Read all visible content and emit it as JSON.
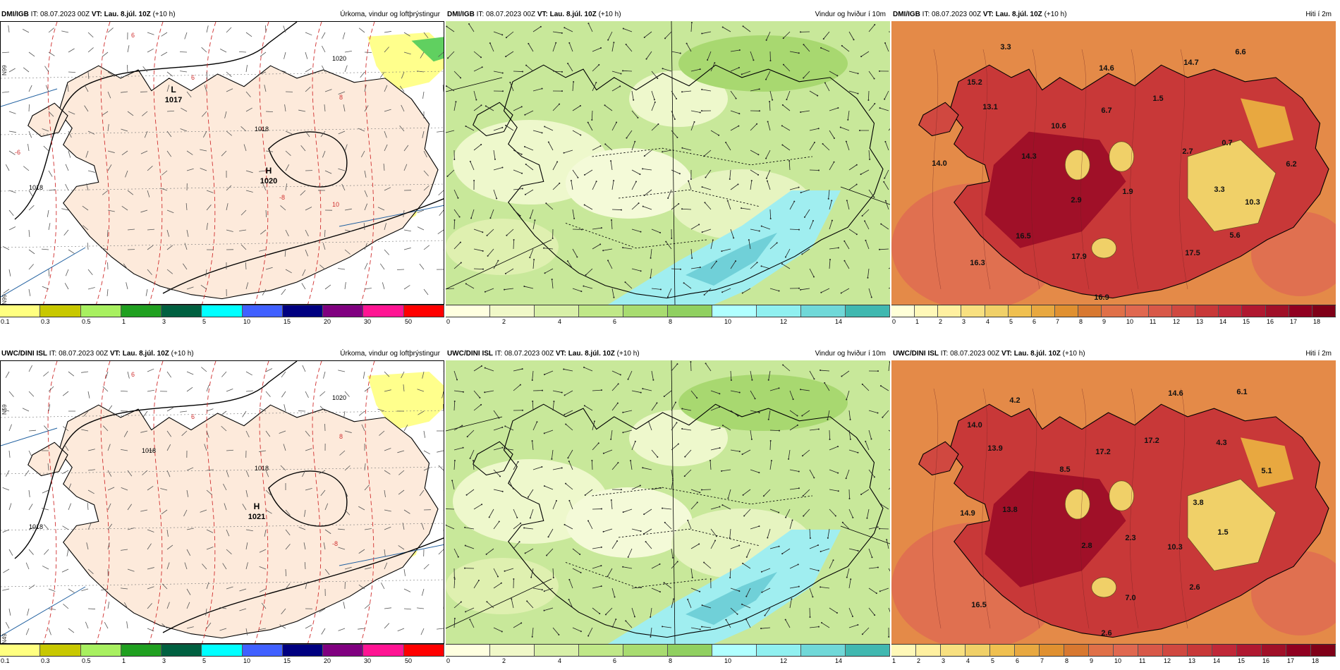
{
  "panels": [
    {
      "model": "DMI/IGB",
      "it_label": "IT:",
      "it_value": "08.07.2023 00Z",
      "vt_label": "VT:",
      "vt_value": "Lau. 8.júl. 10Z",
      "lead": "(+10 h)",
      "title": "Úrkoma, vindur og loftþrýstingur",
      "kind": "precip",
      "pressure_labels": [
        {
          "text": "L",
          "value": "1017"
        },
        {
          "text": "H",
          "value": "1020"
        }
      ],
      "isobars": [
        "1018",
        "1018",
        "1020"
      ],
      "temp_labels": [
        "6",
        "6",
        "8",
        "10",
        "-6",
        "-8"
      ],
      "scale": {
        "ticks": [
          "0.1",
          "0.3",
          "0.5",
          "1",
          "3",
          "5",
          "10",
          "15",
          "20",
          "30",
          "50"
        ],
        "colors": [
          "#ffff80",
          "#c8c800",
          "#a8f060",
          "#20a020",
          "#006040",
          "#00ffff",
          "#4060ff",
          "#000080",
          "#800080",
          "#ff1493",
          "#ff0000"
        ]
      }
    },
    {
      "model": "DMI/IGB",
      "it_label": "IT:",
      "it_value": "08.07.2023 00Z",
      "vt_label": "VT:",
      "vt_value": "Lau. 8.júl. 10Z",
      "lead": "(+10 h)",
      "title": "Vindur og hviður í 10m",
      "kind": "wind",
      "scale": {
        "ticks": [
          "0",
          "2",
          "4",
          "6",
          "8",
          "10",
          "12",
          "14"
        ],
        "colors": [
          "#ffffe0",
          "#f0f8c8",
          "#d8f0a8",
          "#c0e888",
          "#a8dc70",
          "#90d060",
          "#b0ffff",
          "#90f0f0",
          "#70d8d8",
          "#40b8b0"
        ]
      }
    },
    {
      "model": "DMI/IGB",
      "it_label": "IT:",
      "it_value": "08.07.2023 00Z",
      "vt_label": "VT:",
      "vt_value": "Lau. 8.júl. 10Z",
      "lead": "(+10 h)",
      "title": "Hiti í 2m",
      "kind": "temp",
      "values": [
        "3.3",
        "15.2",
        "13.1",
        "14.0",
        "14.3",
        "10.6",
        "14.6",
        "6.7",
        "1.5",
        "14.7",
        "6.6",
        "2.7",
        "0.7",
        "6.2",
        "3.3",
        "10.3",
        "2.9",
        "1.9",
        "16.5",
        "17.9",
        "17.5",
        "5.6",
        "16.3",
        "16.9"
      ],
      "scale": {
        "ticks": [
          "0",
          "1",
          "2",
          "3",
          "4",
          "5",
          "6",
          "7",
          "8",
          "9",
          "10",
          "11",
          "12",
          "13",
          "14",
          "15",
          "16",
          "17",
          "18"
        ],
        "colors": [
          "#ffffd8",
          "#fff8b8",
          "#fff0a0",
          "#f8e080",
          "#f0d068",
          "#f0c050",
          "#e8a840",
          "#e09030",
          "#d87830",
          "#e07048",
          "#e06850",
          "#d85848",
          "#d04840",
          "#c83838",
          "#c02838",
          "#b01830",
          "#a01028",
          "#900020",
          "#800018"
        ]
      }
    },
    {
      "model": "UWC/DINI ISL",
      "it_label": "IT:",
      "it_value": "08.07.2023 00Z",
      "vt_label": "VT:",
      "vt_value": "Lau. 8.júl. 10Z",
      "lead": "(+10 h)",
      "title": "Úrkoma, vindur og loftþrýstingur",
      "kind": "precip",
      "pressure_labels": [
        {
          "text": "H",
          "value": "1021"
        }
      ],
      "isobars": [
        "1018",
        "1018",
        "1020",
        "1018"
      ],
      "temp_labels": [
        "6",
        "6",
        "8",
        "-8"
      ],
      "scale": {
        "ticks": [
          "0.1",
          "0.3",
          "0.5",
          "1",
          "3",
          "5",
          "10",
          "15",
          "20",
          "30",
          "50"
        ],
        "colors": [
          "#ffff80",
          "#c8c800",
          "#a8f060",
          "#20a020",
          "#006040",
          "#00ffff",
          "#4060ff",
          "#000080",
          "#800080",
          "#ff1493",
          "#ff0000"
        ]
      }
    },
    {
      "model": "UWC/DINI ISL",
      "it_label": "IT:",
      "it_value": "08.07.2023 00Z",
      "vt_label": "VT:",
      "vt_value": "Lau. 8.júl. 10Z",
      "lead": "(+10 h)",
      "title": "Vindur og hviður í 10m",
      "kind": "wind",
      "scale": {
        "ticks": [
          "0",
          "2",
          "4",
          "6",
          "8",
          "10",
          "12",
          "14"
        ],
        "colors": [
          "#ffffe0",
          "#f0f8c8",
          "#d8f0a8",
          "#c0e888",
          "#a8dc70",
          "#90d060",
          "#b0ffff",
          "#90f0f0",
          "#70d8d8",
          "#40b8b0"
        ]
      }
    },
    {
      "model": "UWC/DINI ISL",
      "it_label": "IT:",
      "it_value": "08.07.2023 00Z",
      "vt_label": "VT:",
      "vt_value": "Lau. 8.júl. 10Z",
      "lead": "(+10 h)",
      "title": "Hiti í 2m",
      "kind": "temp",
      "values": [
        "4.2",
        "14.6",
        "6.1",
        "14.0",
        "13.9",
        "8.5",
        "17.2",
        "17.2",
        "4.3",
        "5.1",
        "14.9",
        "13.8",
        "3.8",
        "2.8",
        "2.3",
        "10.3",
        "1.5",
        "16.5",
        "7.0",
        "2.6",
        "2.6"
      ],
      "scale": {
        "ticks": [
          "1",
          "2",
          "3",
          "4",
          "5",
          "6",
          "7",
          "8",
          "9",
          "10",
          "11",
          "12",
          "13",
          "14",
          "15",
          "16",
          "17",
          "18"
        ],
        "colors": [
          "#fff8b8",
          "#fff0a0",
          "#f8e080",
          "#f0d068",
          "#f0c050",
          "#e8a840",
          "#e09030",
          "#d87830",
          "#e07048",
          "#e06850",
          "#d85848",
          "#d04840",
          "#c83838",
          "#c02838",
          "#b01830",
          "#a01028",
          "#900020",
          "#800018"
        ]
      }
    }
  ],
  "lat_labels": [
    "N99",
    "N59",
    "N99",
    "N49"
  ]
}
